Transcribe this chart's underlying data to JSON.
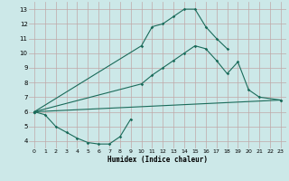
{
  "background_color": "#cce8e8",
  "grid_color": "#c0a8a8",
  "line_color": "#1a6b5a",
  "xlabel": "Humidex (Indice chaleur)",
  "xlim": [
    -0.5,
    23.5
  ],
  "ylim": [
    3.5,
    13.5
  ],
  "xticks": [
    0,
    1,
    2,
    3,
    4,
    5,
    6,
    7,
    8,
    9,
    10,
    11,
    12,
    13,
    14,
    15,
    16,
    17,
    18,
    19,
    20,
    21,
    22,
    23
  ],
  "yticks": [
    4,
    5,
    6,
    7,
    8,
    9,
    10,
    11,
    12,
    13
  ],
  "line1_x": [
    0,
    23
  ],
  "line1_y": [
    6.0,
    6.8
  ],
  "line2_x": [
    0,
    1,
    2,
    3,
    4,
    5,
    6,
    7,
    8,
    9
  ],
  "line2_y": [
    6.0,
    5.8,
    5.0,
    4.6,
    4.2,
    3.9,
    3.8,
    3.8,
    4.3,
    5.5
  ],
  "line3_x": [
    0,
    10,
    11,
    12,
    13,
    14,
    15,
    16,
    17,
    18,
    19,
    20,
    21,
    23
  ],
  "line3_y": [
    6.0,
    7.9,
    8.5,
    9.0,
    9.5,
    10.0,
    10.5,
    10.3,
    9.5,
    8.6,
    9.4,
    7.5,
    7.0,
    6.8
  ],
  "line4_x": [
    0,
    10,
    11,
    12,
    13,
    14,
    15,
    16,
    17,
    18
  ],
  "line4_y": [
    6.0,
    10.5,
    11.8,
    12.0,
    12.5,
    13.0,
    13.0,
    11.8,
    11.0,
    10.3
  ]
}
